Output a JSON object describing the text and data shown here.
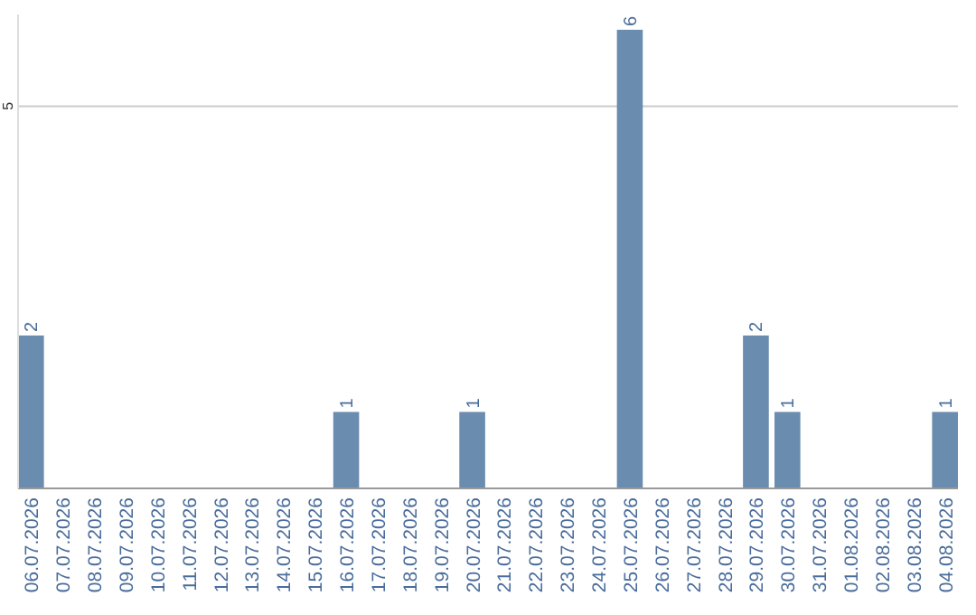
{
  "chart_data": {
    "type": "bar",
    "categories": [
      "06.07.2026",
      "07.07.2026",
      "08.07.2026",
      "09.07.2026",
      "10.07.2026",
      "11.07.2026",
      "12.07.2026",
      "13.07.2026",
      "14.07.2026",
      "15.07.2026",
      "16.07.2026",
      "17.07.2026",
      "18.07.2026",
      "19.07.2026",
      "20.07.2026",
      "21.07.2026",
      "22.07.2026",
      "23.07.2026",
      "24.07.2026",
      "25.07.2026",
      "26.07.2026",
      "27.07.2026",
      "28.07.2026",
      "29.07.2026",
      "30.07.2026",
      "31.07.2026",
      "01.08.2026",
      "02.08.2026",
      "03.08.2026",
      "04.08.2026"
    ],
    "values": [
      2,
      0,
      0,
      0,
      0,
      0,
      0,
      0,
      0,
      0,
      1,
      0,
      0,
      0,
      1,
      0,
      0,
      0,
      0,
      6,
      0,
      0,
      0,
      2,
      1,
      0,
      0,
      0,
      0,
      1
    ],
    "value_labels": [
      "2",
      null,
      null,
      null,
      null,
      null,
      null,
      null,
      null,
      null,
      "1",
      null,
      null,
      null,
      "1",
      null,
      null,
      null,
      null,
      "6",
      null,
      null,
      null,
      "2",
      "1",
      null,
      null,
      null,
      null,
      "1"
    ],
    "color": "#6a8caf",
    "ylim": [
      0,
      6.2
    ],
    "yticks": [
      5
    ],
    "grid": "y"
  }
}
